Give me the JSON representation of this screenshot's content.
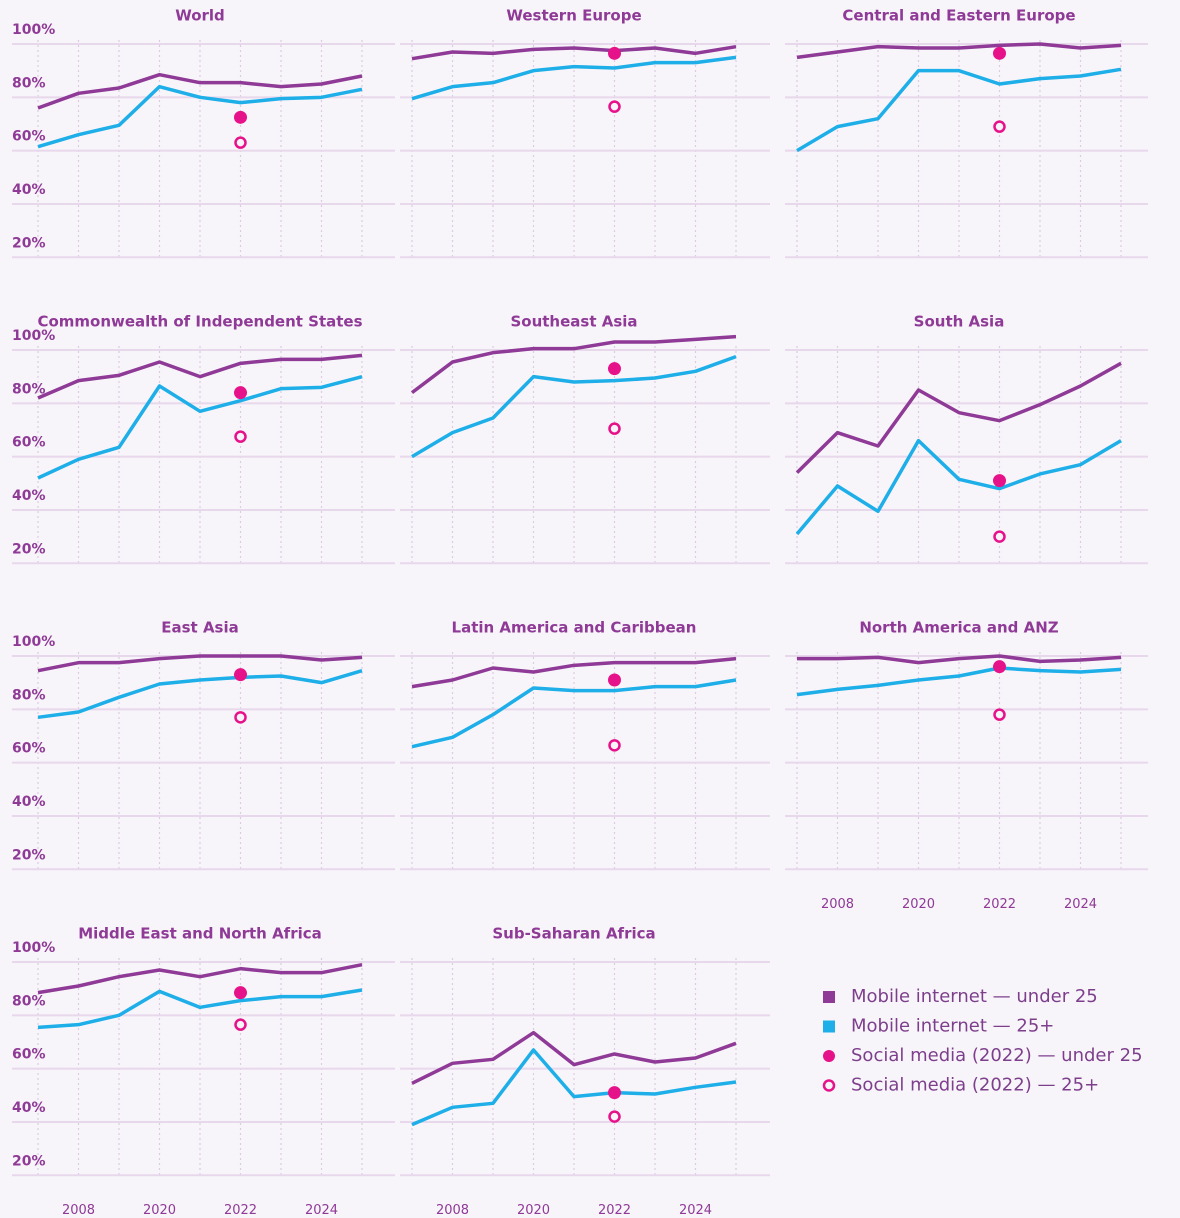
{
  "chart_data": {
    "type": "line",
    "categories": [
      null,
      "2008",
      null,
      "2020",
      null,
      "2022",
      null,
      "2024",
      null
    ],
    "ylim": [
      20,
      100
    ],
    "yticks": [
      {
        "value": 20,
        "label": "20%"
      },
      {
        "value": 40,
        "label": "40%"
      },
      {
        "value": 60,
        "label": "60%"
      },
      {
        "value": 80,
        "label": "80%"
      },
      {
        "value": 100,
        "label": "100%"
      }
    ],
    "grid": true,
    "legend": [
      {
        "name": "Mobile internet — under 25",
        "color": "#8e3a96",
        "marker": "square"
      },
      {
        "name": "Mobile internet — 25+",
        "color": "#1eaee8",
        "marker": "square"
      },
      {
        "name": "Social media (2022) — under 25",
        "color": "#e6128a",
        "marker": "filled-circle"
      },
      {
        "name": "Social media (2022) — 25+",
        "color": "#e6128a",
        "marker": "open-circle"
      }
    ],
    "panels": [
      {
        "title": "World",
        "series": [
          {
            "values": [
              76,
              81.5,
              83.5,
              88.5,
              85.5,
              85.5,
              84,
              85,
              88
            ]
          },
          {
            "values": [
              61.5,
              66,
              69.5,
              84,
              80,
              78,
              79.5,
              80,
              83
            ]
          },
          {
            "values": [
              null,
              null,
              null,
              null,
              null,
              72.5,
              null,
              null,
              null
            ]
          },
          {
            "values": [
              null,
              null,
              null,
              null,
              null,
              63,
              null,
              null,
              null
            ]
          }
        ]
      },
      {
        "title": "Western Europe",
        "series": [
          {
            "values": [
              94.5,
              97,
              96.5,
              98,
              98.5,
              97.5,
              98.5,
              96.5,
              99
            ]
          },
          {
            "values": [
              79.5,
              84,
              85.5,
              90,
              91.5,
              91,
              93,
              93,
              95
            ]
          },
          {
            "values": [
              null,
              null,
              null,
              null,
              null,
              96.5,
              null,
              null,
              null
            ]
          },
          {
            "values": [
              null,
              null,
              null,
              null,
              null,
              76.5,
              null,
              null,
              null
            ]
          }
        ]
      },
      {
        "title": "Central and Eastern Europe",
        "series": [
          {
            "values": [
              95,
              97,
              99,
              98.5,
              98.5,
              99.5,
              100,
              98.5,
              99.5
            ]
          },
          {
            "values": [
              60,
              69,
              72,
              90,
              90,
              85,
              87,
              88,
              90.5
            ]
          },
          {
            "values": [
              null,
              null,
              null,
              null,
              null,
              96.5,
              null,
              null,
              null
            ]
          },
          {
            "values": [
              null,
              null,
              null,
              null,
              null,
              69,
              null,
              null,
              null
            ]
          }
        ]
      },
      {
        "title": "Commonwealth of Independent States",
        "series": [
          {
            "values": [
              82,
              88.5,
              90.5,
              95.5,
              90,
              95,
              96.5,
              96.5,
              98
            ]
          },
          {
            "values": [
              52,
              59,
              63.5,
              86.5,
              77,
              81,
              85.5,
              86,
              90
            ]
          },
          {
            "values": [
              null,
              null,
              null,
              null,
              null,
              84,
              null,
              null,
              null
            ]
          },
          {
            "values": [
              null,
              null,
              null,
              null,
              null,
              67.5,
              null,
              null,
              null
            ]
          }
        ]
      },
      {
        "title": "Southeast Asia",
        "series": [
          {
            "values": [
              84,
              95.5,
              99,
              100.5,
              100.5,
              103,
              103,
              104,
              105
            ]
          },
          {
            "values": [
              60,
              69,
              74.5,
              90,
              88,
              88.5,
              89.5,
              92,
              97.5
            ]
          },
          {
            "values": [
              null,
              null,
              null,
              null,
              null,
              93,
              null,
              null,
              null
            ]
          },
          {
            "values": [
              null,
              null,
              null,
              null,
              null,
              70.5,
              null,
              null,
              null
            ]
          }
        ]
      },
      {
        "title": "South Asia",
        "series": [
          {
            "values": [
              54,
              69,
              64,
              85,
              76.5,
              73.5,
              79.5,
              86.5,
              95
            ]
          },
          {
            "values": [
              31,
              49,
              39.5,
              66,
              51.5,
              48,
              53.5,
              57,
              66
            ]
          },
          {
            "values": [
              null,
              null,
              null,
              null,
              null,
              51,
              null,
              null,
              null
            ]
          },
          {
            "values": [
              null,
              null,
              null,
              null,
              null,
              30,
              null,
              null,
              null
            ]
          }
        ]
      },
      {
        "title": "East Asia",
        "series": [
          {
            "values": [
              94.5,
              97.5,
              97.5,
              99,
              100,
              100,
              100,
              98.5,
              99.5
            ]
          },
          {
            "values": [
              77,
              79,
              84.5,
              89.5,
              91,
              92,
              92.5,
              90,
              94.5
            ]
          },
          {
            "values": [
              null,
              null,
              null,
              null,
              null,
              93,
              null,
              null,
              null
            ]
          },
          {
            "values": [
              null,
              null,
              null,
              null,
              null,
              77,
              null,
              null,
              null
            ]
          }
        ]
      },
      {
        "title": "Latin America and Caribbean",
        "series": [
          {
            "values": [
              88.5,
              91,
              95.5,
              94,
              96.5,
              97.5,
              97.5,
              97.5,
              99
            ]
          },
          {
            "values": [
              66,
              69.5,
              78,
              88,
              87,
              87,
              88.5,
              88.5,
              91
            ]
          },
          {
            "values": [
              null,
              null,
              null,
              null,
              null,
              91,
              null,
              null,
              null
            ]
          },
          {
            "values": [
              null,
              null,
              null,
              null,
              null,
              66.5,
              null,
              null,
              null
            ]
          }
        ]
      },
      {
        "title": "North America and ANZ",
        "series": [
          {
            "values": [
              99,
              99,
              99.5,
              97.5,
              99,
              100,
              98,
              98.5,
              99.5
            ]
          },
          {
            "values": [
              85.5,
              87.5,
              89,
              91,
              92.5,
              95.5,
              94.5,
              94,
              95
            ]
          },
          {
            "values": [
              null,
              null,
              null,
              null,
              null,
              96,
              null,
              null,
              null
            ]
          },
          {
            "values": [
              null,
              null,
              null,
              null,
              null,
              78,
              null,
              null,
              null
            ]
          }
        ]
      },
      {
        "title": "Middle East and North Africa",
        "series": [
          {
            "values": [
              88.5,
              91,
              94.5,
              97,
              94.5,
              97.5,
              96,
              96,
              99
            ]
          },
          {
            "values": [
              75.5,
              76.5,
              80,
              89,
              83,
              85.5,
              87,
              87,
              89.5
            ]
          },
          {
            "values": [
              null,
              null,
              null,
              null,
              null,
              88.5,
              null,
              null,
              null
            ]
          },
          {
            "values": [
              null,
              null,
              null,
              null,
              null,
              76.5,
              null,
              null,
              null
            ]
          }
        ]
      },
      {
        "title": "Sub-Saharan Africa",
        "series": [
          {
            "values": [
              54.5,
              62,
              63.5,
              73.5,
              61.5,
              65.5,
              62.5,
              64,
              69.5
            ]
          },
          {
            "values": [
              39,
              45.5,
              47,
              67,
              49.5,
              51,
              50.5,
              53,
              55
            ]
          },
          {
            "values": [
              null,
              null,
              null,
              null,
              null,
              51,
              null,
              null,
              null
            ]
          },
          {
            "values": [
              null,
              null,
              null,
              null,
              null,
              42,
              null,
              null,
              null
            ]
          }
        ]
      }
    ]
  }
}
